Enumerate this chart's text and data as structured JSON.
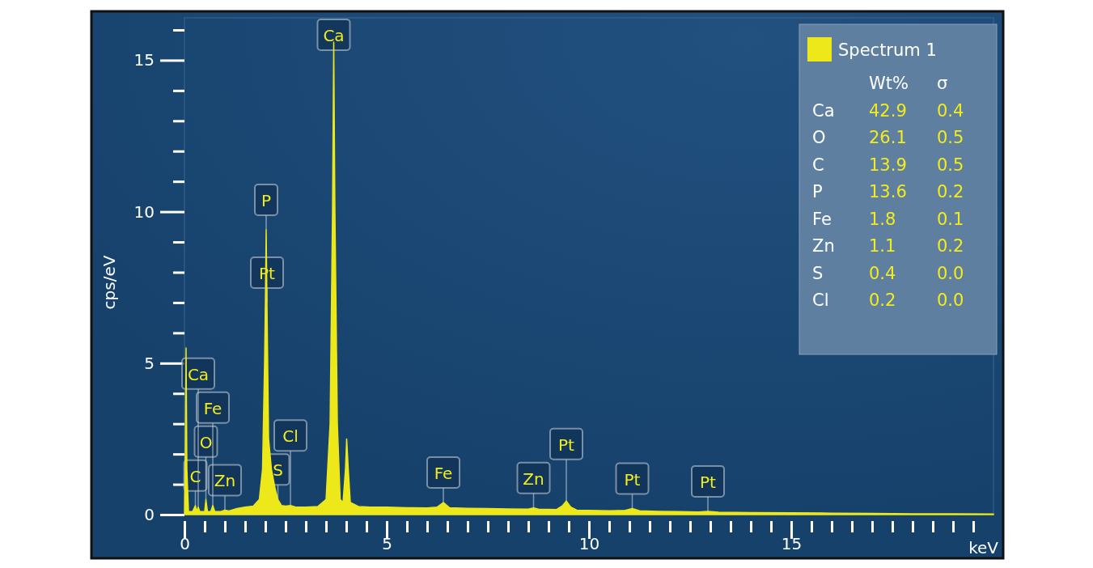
{
  "chart_data": {
    "type": "area",
    "xlabel": "keV",
    "ylabel": "cps/eV",
    "legend": "top right",
    "grid": false,
    "xlim": [
      0,
      20
    ],
    "ylim": [
      0,
      16.4
    ],
    "xticks": [
      0,
      {
        "value": 0.5,
        "label": null
      },
      {
        "value": 1,
        "label": null
      },
      {
        "value": 1.5,
        "label": null
      },
      {
        "value": 2,
        "label": null
      },
      {
        "value": 2.5,
        "label": null
      },
      {
        "value": 3,
        "label": null
      },
      {
        "value": 3.5,
        "label": null
      },
      {
        "value": 4,
        "label": null
      },
      {
        "value": 4.5,
        "label": null
      },
      5,
      {
        "value": 5.5,
        "label": null
      },
      {
        "value": 6,
        "label": null
      },
      {
        "value": 6.5,
        "label": null
      },
      {
        "value": 7,
        "label": null
      },
      {
        "value": 7.5,
        "label": null
      },
      {
        "value": 8,
        "label": null
      },
      {
        "value": 8.5,
        "label": null
      },
      {
        "value": 9,
        "label": null
      },
      {
        "value": 9.5,
        "label": null
      },
      10,
      {
        "value": 10.5,
        "label": null
      },
      {
        "value": 11,
        "label": null
      },
      {
        "value": 11.5,
        "label": null
      },
      {
        "value": 12,
        "label": null
      },
      {
        "value": 12.5,
        "label": null
      },
      {
        "value": 13,
        "label": null
      },
      {
        "value": 13.5,
        "label": null
      },
      {
        "value": 14,
        "label": null
      },
      {
        "value": 14.5,
        "label": null
      },
      15,
      {
        "value": 15.5,
        "label": null
      },
      {
        "value": 16,
        "label": null
      },
      {
        "value": 16.5,
        "label": null
      },
      {
        "value": 17,
        "label": null
      },
      {
        "value": 17.5,
        "label": null
      },
      {
        "value": 18,
        "label": null
      },
      {
        "value": 18.5,
        "label": null
      },
      {
        "value": 19,
        "label": null
      },
      {
        "value": 19.5,
        "label": null
      }
    ],
    "yticks": [
      0,
      {
        "value": 1,
        "label": null
      },
      {
        "value": 2,
        "label": null
      },
      {
        "value": 3,
        "label": null
      },
      {
        "value": 4,
        "label": null
      },
      5,
      {
        "value": 6,
        "label": null
      },
      {
        "value": 7,
        "label": null
      },
      {
        "value": 8,
        "label": null
      },
      {
        "value": 9,
        "label": null
      },
      10,
      {
        "value": 11,
        "label": null
      },
      {
        "value": 12,
        "label": null
      },
      {
        "value": 13,
        "label": null
      },
      {
        "value": 14,
        "label": null
      },
      15,
      {
        "value": 16,
        "label": null
      }
    ],
    "series": [
      {
        "name": "Spectrum 1",
        "color": "#ece81a",
        "x": [
          0,
          0.02,
          0.04,
          0.06,
          0.1,
          0.2,
          0.27,
          0.3,
          0.34,
          0.38,
          0.5,
          0.53,
          0.57,
          0.65,
          0.7,
          0.75,
          0.9,
          1.0,
          1.1,
          1.3,
          1.5,
          1.7,
          1.85,
          1.93,
          1.98,
          2.0,
          2.02,
          2.04,
          2.08,
          2.15,
          2.25,
          2.31,
          2.4,
          2.5,
          2.62,
          2.75,
          3.0,
          3.3,
          3.5,
          3.6,
          3.66,
          3.69,
          3.72,
          3.78,
          3.85,
          3.92,
          3.98,
          4.01,
          4.05,
          4.1,
          4.3,
          4.6,
          5.0,
          5.5,
          6.0,
          6.25,
          6.4,
          6.55,
          7.0,
          7.5,
          8.0,
          8.5,
          8.63,
          8.75,
          9.2,
          9.35,
          9.44,
          9.55,
          9.7,
          10.0,
          10.5,
          10.9,
          11.07,
          11.25,
          11.7,
          12.2,
          12.7,
          12.94,
          13.2,
          14,
          15,
          16,
          17,
          18,
          19,
          20
        ],
        "values": [
          0,
          2,
          5.5,
          1.5,
          0.1,
          0.1,
          0.3,
          0.1,
          0.25,
          0.1,
          0.1,
          0.5,
          0.1,
          0.1,
          0.3,
          0.1,
          0.1,
          0.15,
          0.12,
          0.2,
          0.25,
          0.28,
          0.5,
          1.5,
          5,
          7,
          9.4,
          7,
          2.5,
          1.5,
          0.8,
          0.5,
          0.3,
          0.28,
          0.3,
          0.25,
          0.25,
          0.27,
          0.5,
          3,
          10,
          15.6,
          10,
          3,
          0.5,
          0.4,
          1.5,
          2.5,
          1.5,
          0.4,
          0.27,
          0.25,
          0.25,
          0.23,
          0.22,
          0.25,
          0.4,
          0.23,
          0.21,
          0.2,
          0.19,
          0.18,
          0.22,
          0.18,
          0.17,
          0.3,
          0.45,
          0.25,
          0.15,
          0.14,
          0.13,
          0.14,
          0.2,
          0.13,
          0.11,
          0.1,
          0.09,
          0.11,
          0.08,
          0.07,
          0.06,
          0.05,
          0.04,
          0.03,
          0.03,
          0.02
        ]
      }
    ],
    "annotations": [
      {
        "text": "Ca",
        "x": 3.69,
        "y": 15.6
      },
      {
        "text": "P",
        "x": 2.02,
        "y": 9.4
      },
      {
        "text": "Pt",
        "x": 2.04,
        "y": 7
      },
      {
        "text": "C",
        "x": 0.27,
        "y": 0.3
      },
      {
        "text": "Zn",
        "x": 1.0,
        "y": 0.15
      },
      {
        "text": "O",
        "x": 0.53,
        "y": 0.5
      },
      {
        "text": "Fe",
        "x": 0.7,
        "y": 0.3
      },
      {
        "text": "Ca",
        "x": 0.34,
        "y": 0.25
      },
      {
        "text": "S",
        "x": 2.31,
        "y": 0.5
      },
      {
        "text": "Cl",
        "x": 2.62,
        "y": 0.3
      },
      {
        "text": "Fe",
        "x": 6.4,
        "y": 0.4
      },
      {
        "text": "Zn",
        "x": 8.63,
        "y": 0.22
      },
      {
        "text": "Pt",
        "x": 9.44,
        "y": 0.45
      },
      {
        "text": "Pt",
        "x": 11.07,
        "y": 0.2
      },
      {
        "text": "Pt",
        "x": 12.94,
        "y": 0.11
      },
      "Wt%",
      "σ",
      "Ca",
      "42.9",
      "0.4",
      "O",
      "26.1",
      "0.5",
      "C",
      "13.9",
      "0.5",
      "P",
      "13.6",
      "0.2",
      "Fe",
      "1.8",
      "0.1",
      "Zn",
      "1.1",
      "0.2",
      "S",
      "0.4",
      "0.0",
      "Cl",
      "0.2",
      "0.0"
    ]
  }
}
